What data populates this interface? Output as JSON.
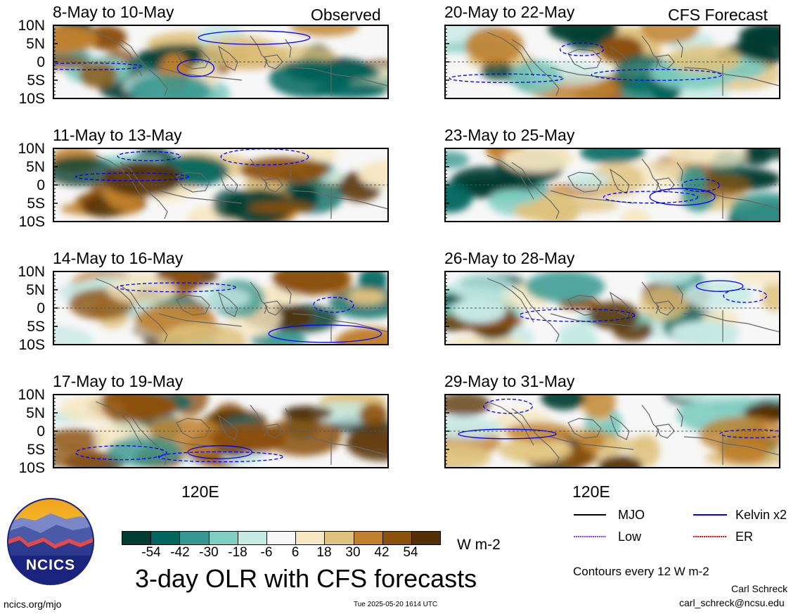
{
  "header": {
    "observed_label": "Observed",
    "forecast_label": "CFS Forecast"
  },
  "panels": [
    {
      "title": "8-May to 10-May",
      "column": "observed"
    },
    {
      "title": "11-May to 13-May",
      "column": "observed"
    },
    {
      "title": "14-May to 16-May",
      "column": "observed"
    },
    {
      "title": "17-May to 19-May",
      "column": "observed"
    },
    {
      "title": "20-May to 22-May",
      "column": "forecast"
    },
    {
      "title": "23-May to 25-May",
      "column": "forecast"
    },
    {
      "title": "26-May to 28-May",
      "column": "forecast"
    },
    {
      "title": "29-May to 31-May",
      "column": "forecast"
    }
  ],
  "axes": {
    "lat_ticks": [
      "10N",
      "5N",
      "0",
      "5S",
      "10S"
    ],
    "lon_tick": "120E"
  },
  "colorbar": {
    "labels": [
      "-54",
      "-42",
      "-30",
      "-18",
      "-6",
      "6",
      "18",
      "30",
      "42",
      "54"
    ],
    "units": "W m-2",
    "colors": [
      "#003c30",
      "#01665e",
      "#35978f",
      "#80cdc1",
      "#c7eae5",
      "#f7f7f7",
      "#f6e8c3",
      "#dfc27d",
      "#bf812d",
      "#8c510a",
      "#543005"
    ]
  },
  "legend": {
    "items": [
      {
        "label": "MJO",
        "color": "#000000"
      },
      {
        "label": "Kelvin x2",
        "color": "#0000ff"
      },
      {
        "label": "Low",
        "color": "#9b30ff"
      },
      {
        "label": "ER",
        "color": "#ff0000"
      }
    ],
    "contour_note": "Contours every 12 W m-2"
  },
  "footer": {
    "title": "3-day OLR with CFS forecasts",
    "logo_text": "NCICS",
    "url": "ncics.org/mjo",
    "timestamp": "Tue 2025-05-20 1614 UTC",
    "author": "Carl Schreck",
    "email": "carl_schreck@ncsu.edu"
  },
  "chart_data": {
    "type": "heatmap",
    "title": "3-day OLR with CFS forecasts",
    "units": "W m-2",
    "y_ticks": [
      "10N",
      "5N",
      "0",
      "5S",
      "10S"
    ],
    "x_ticks": [
      "120E"
    ],
    "ylim": [
      "10S",
      "10N"
    ],
    "color_levels": [
      -54,
      -42,
      -30,
      -18,
      -6,
      6,
      18,
      30,
      42,
      54
    ],
    "contour_interval": 12,
    "panels": [
      {
        "title": "8-May to 10-May",
        "source": "Observed"
      },
      {
        "title": "11-May to 13-May",
        "source": "Observed"
      },
      {
        "title": "14-May to 16-May",
        "source": "Observed"
      },
      {
        "title": "17-May to 19-May",
        "source": "Observed"
      },
      {
        "title": "20-May to 22-May",
        "source": "CFS Forecast"
      },
      {
        "title": "23-May to 25-May",
        "source": "CFS Forecast"
      },
      {
        "title": "26-May to 28-May",
        "source": "CFS Forecast"
      },
      {
        "title": "29-May to 31-May",
        "source": "CFS Forecast"
      }
    ]
  }
}
